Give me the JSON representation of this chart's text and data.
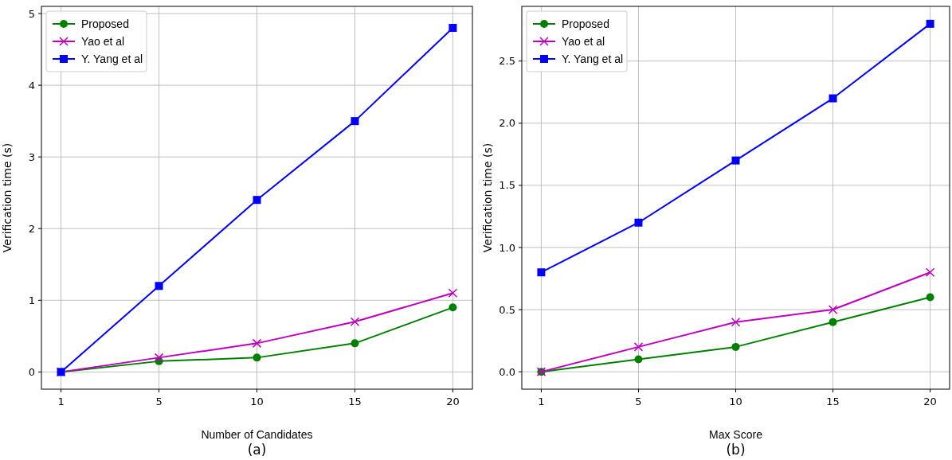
{
  "chart_data": [
    {
      "type": "line",
      "xlabel": "Number of Candidates",
      "ylabel": "Verification time (s)",
      "annotations": [
        "(a)"
      ],
      "categories": [
        "1",
        "5",
        "10",
        "15",
        "20"
      ],
      "ylim": [
        -0.24,
        5.1
      ],
      "yticks": [
        0,
        1,
        2,
        3,
        4,
        5
      ],
      "grid": true,
      "legend": "top left",
      "series": [
        {
          "name": "Proposed",
          "color": "#008000",
          "marker": "circle",
          "values": [
            0,
            0.15,
            0.2,
            0.4,
            0.9
          ]
        },
        {
          "name": "Yao et al",
          "color": "#bf00bf",
          "marker": "cross",
          "values": [
            0,
            0.2,
            0.4,
            0.7,
            1.1
          ]
        },
        {
          "name": "Y. Yang et al",
          "color": "#0000ff",
          "marker": "square",
          "values": [
            0,
            1.2,
            2.4,
            3.5,
            4.8
          ]
        }
      ]
    },
    {
      "type": "line",
      "xlabel": "Max Score",
      "ylabel": "Verification time (s)",
      "annotations": [
        "(b)"
      ],
      "categories": [
        "1",
        "5",
        "10",
        "15",
        "20"
      ],
      "ylim": [
        -0.14,
        2.94
      ],
      "yticks": [
        {
          "value": 0,
          "label": "0.0"
        },
        {
          "value": 0.5,
          "label": "0.5"
        },
        {
          "value": 1,
          "label": "1.0"
        },
        {
          "value": 1.5,
          "label": "1.5"
        },
        {
          "value": 2,
          "label": "2.0"
        },
        {
          "value": 2.5,
          "label": "2.5"
        }
      ],
      "grid": true,
      "legend": "top left",
      "series": [
        {
          "name": "Proposed",
          "color": "#008000",
          "marker": "circle",
          "values": [
            0,
            0.1,
            0.2,
            0.4,
            0.6
          ]
        },
        {
          "name": "Yao et al",
          "color": "#bf00bf",
          "marker": "cross",
          "values": [
            0,
            0.2,
            0.4,
            0.5,
            0.8
          ]
        },
        {
          "name": "Y. Yang et al",
          "color": "#0000ff",
          "marker": "square",
          "values": [
            0.8,
            1.2,
            1.7,
            2.2,
            2.8
          ]
        }
      ]
    }
  ]
}
